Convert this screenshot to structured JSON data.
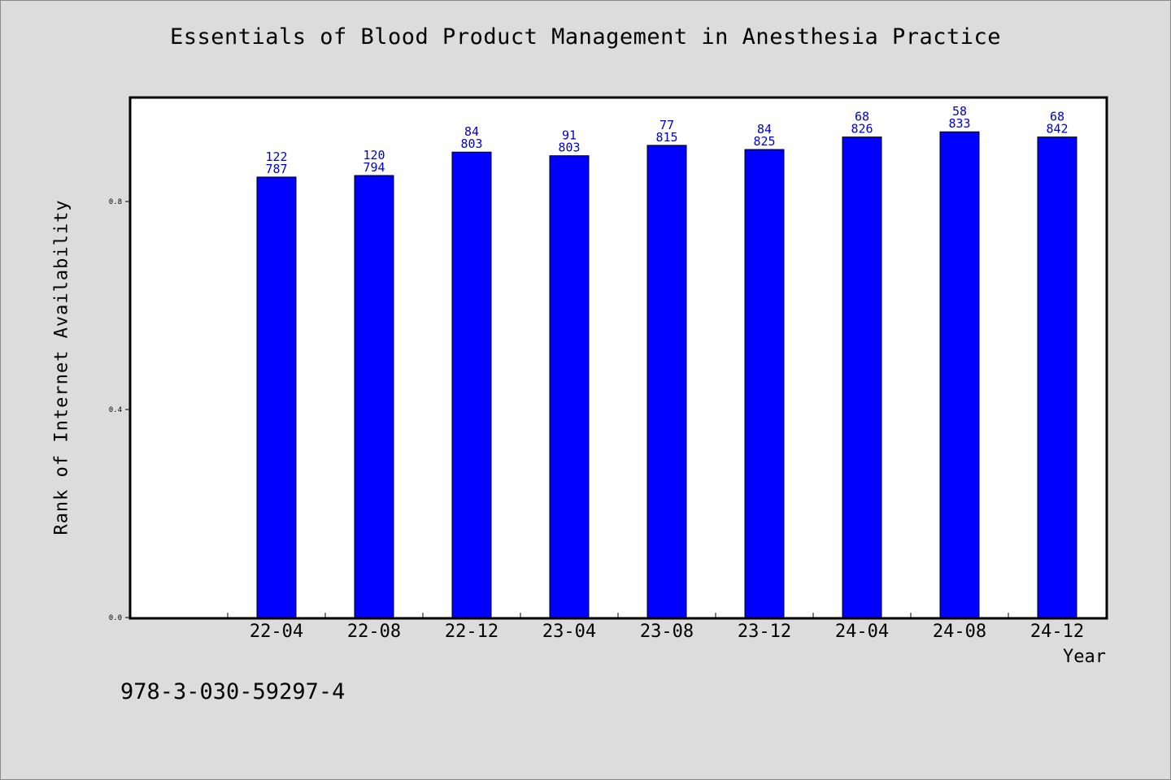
{
  "chart_data": {
    "type": "bar",
    "title": "Essentials of Blood Product Management in Anesthesia Practice",
    "xlabel": "Year",
    "ylabel": "Rank of Internet Availability",
    "categories": [
      "22-04",
      "22-08",
      "22-12",
      "23-04",
      "23-08",
      "23-12",
      "24-04",
      "24-08",
      "24-12"
    ],
    "values": [
      0.847,
      0.85,
      0.895,
      0.888,
      0.908,
      0.9,
      0.924,
      0.934,
      0.924
    ],
    "data_labels_top": [
      "122",
      "120",
      "84",
      "91",
      "77",
      "84",
      "68",
      "58",
      "68"
    ],
    "data_labels_bottom": [
      "787",
      "794",
      "803",
      "803",
      "815",
      "825",
      "826",
      "833",
      "842"
    ],
    "yticks": [
      "0.0",
      "0.4",
      "0.8"
    ],
    "ytick_values": [
      0.0,
      0.4,
      0.8
    ],
    "ylim": [
      0,
      1.0
    ],
    "grid": false,
    "bar_color": "#0000ff",
    "label_color": "#0000cc"
  },
  "footer": {
    "isbn": "978-3-030-59297-4"
  }
}
